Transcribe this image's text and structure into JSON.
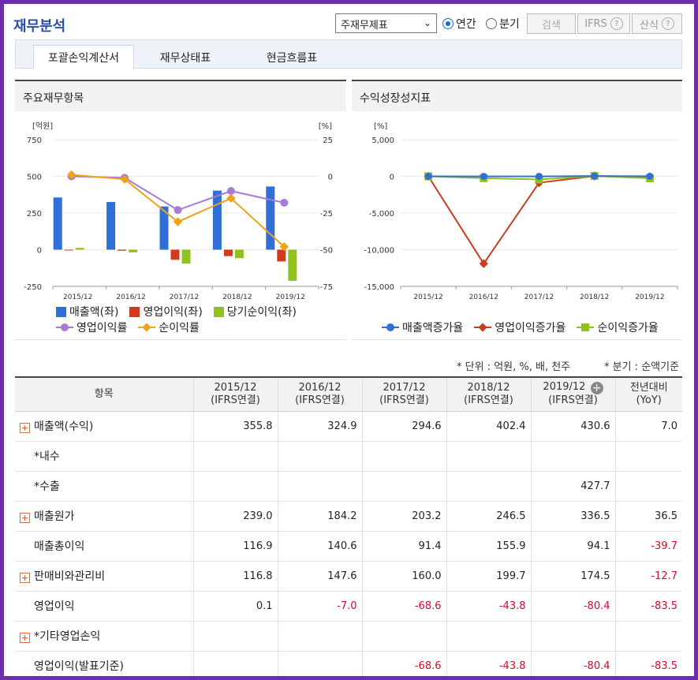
{
  "header": {
    "title": "재무분석",
    "report_select": "주재무제표",
    "radio_annual": "연간",
    "radio_quarter": "분기",
    "search_label": "검색",
    "ifrs_label": "IFRS",
    "formula_label": "산식",
    "help_glyph": "?"
  },
  "tabs": [
    {
      "label": "포괄손익계산서",
      "active": true
    },
    {
      "label": "재무상태표",
      "active": false
    },
    {
      "label": "현금흐름표",
      "active": false
    }
  ],
  "left_chart_title": "주요재무항목",
  "right_chart_title": "수익성장성지표",
  "chart_data": [
    {
      "type": "bar",
      "categories": [
        "2015/12",
        "2016/12",
        "2017/12",
        "2018/12",
        "2019/12"
      ],
      "ylabel": "[억원]",
      "y2label": "[%]",
      "ylim": [
        -250,
        750
      ],
      "y2lim": [
        -75,
        25
      ],
      "yticks": [
        "750",
        "500",
        "250",
        "0",
        "-250"
      ],
      "y2ticks": [
        "25",
        "0",
        "-25",
        "-50",
        "-75"
      ],
      "series": [
        {
          "name": "매출액(좌)",
          "kind": "bar",
          "axis": "left",
          "color": "#2f6fd6",
          "values": [
            355.8,
            324.9,
            294.6,
            402.4,
            430.6
          ]
        },
        {
          "name": "영업이익(좌)",
          "kind": "bar",
          "axis": "left",
          "color": "#d23a1b",
          "values": [
            0.1,
            -7.0,
            -68.6,
            -43.8,
            -80.4
          ]
        },
        {
          "name": "당기순이익(좌)",
          "kind": "bar",
          "axis": "left",
          "color": "#8fc21f",
          "values": [
            12.0,
            -18.0,
            -95.0,
            -58.0,
            -212.0
          ]
        },
        {
          "name": "영업이익률",
          "kind": "line",
          "axis": "right",
          "color": "#a77ad9",
          "marker": "circle",
          "values": [
            0.0,
            -1.0,
            -23.0,
            -10.0,
            -18.0
          ]
        },
        {
          "name": "순이익률",
          "kind": "line",
          "axis": "right",
          "color": "#f0a21c",
          "marker": "diamond",
          "values": [
            1.0,
            -2.0,
            -31.0,
            -15.0,
            -48.0
          ]
        }
      ],
      "legend": "bottom"
    },
    {
      "type": "line",
      "categories": [
        "2015/12",
        "2016/12",
        "2017/12",
        "2018/12",
        "2019/12"
      ],
      "ylabel": "[%]",
      "ylim": [
        -15000,
        5000
      ],
      "yticks": [
        "5,000",
        "0",
        "-5,000",
        "-10,000",
        "-15,000"
      ],
      "series": [
        {
          "name": "매출액증가율",
          "color": "#2f6fd6",
          "marker": "circle",
          "values": [
            0,
            -8.7,
            -9.3,
            36.6,
            7.0
          ]
        },
        {
          "name": "영업이익증가율",
          "color": "#c5401a",
          "marker": "diamond",
          "values": [
            0,
            -11900,
            -880,
            36.2,
            -83.5
          ]
        },
        {
          "name": "순이익증가율",
          "color": "#8fc21f",
          "marker": "square",
          "values": [
            0,
            -250,
            -430,
            39,
            -270
          ]
        }
      ],
      "legend": "bottom"
    }
  ],
  "notes": {
    "unit": "* 단위 : 억원, %, 배, 천주",
    "quarter": "* 분기 : 순액기준"
  },
  "table": {
    "head_item": "항목",
    "columns": [
      {
        "year": "2015/12",
        "basis": "(IFRS연결)"
      },
      {
        "year": "2016/12",
        "basis": "(IFRS연결)"
      },
      {
        "year": "2017/12",
        "basis": "(IFRS연결)"
      },
      {
        "year": "2018/12",
        "basis": "(IFRS연결)"
      },
      {
        "year": "2019/12",
        "basis": "(IFRS연결)"
      }
    ],
    "yoy_head": "전년대비",
    "yoy_sub": "(YoY)",
    "expand_glyph": "+",
    "rows": [
      {
        "label": "매출액(수익)",
        "expand": true,
        "cells": [
          "355.8",
          "324.9",
          "294.6",
          "402.4",
          "430.6",
          "7.0"
        ]
      },
      {
        "label": "*내수",
        "expand": false,
        "cells": [
          "",
          "",
          "",
          "",
          "",
          ""
        ]
      },
      {
        "label": "*수출",
        "expand": false,
        "cells": [
          "",
          "",
          "",
          "",
          "427.7",
          ""
        ]
      },
      {
        "label": "매출원가",
        "expand": true,
        "cells": [
          "239.0",
          "184.2",
          "203.2",
          "246.5",
          "336.5",
          "36.5"
        ]
      },
      {
        "label": "매출총이익",
        "expand": false,
        "cells": [
          "116.9",
          "140.6",
          "91.4",
          "155.9",
          "94.1",
          "-39.7"
        ]
      },
      {
        "label": "판매비와관리비",
        "expand": true,
        "cells": [
          "116.8",
          "147.6",
          "160.0",
          "199.7",
          "174.5",
          "-12.7"
        ]
      },
      {
        "label": "영업이익",
        "expand": false,
        "cells": [
          "0.1",
          "-7.0",
          "-68.6",
          "-43.8",
          "-80.4",
          "-83.5"
        ]
      },
      {
        "label": "*기타영업손익",
        "expand": true,
        "cells": [
          "",
          "",
          "",
          "",
          "",
          ""
        ]
      },
      {
        "label": "영업이익(발표기준)",
        "expand": false,
        "cells": [
          "",
          "",
          "-68.6",
          "-43.8",
          "-80.4",
          "-83.5"
        ]
      }
    ]
  }
}
